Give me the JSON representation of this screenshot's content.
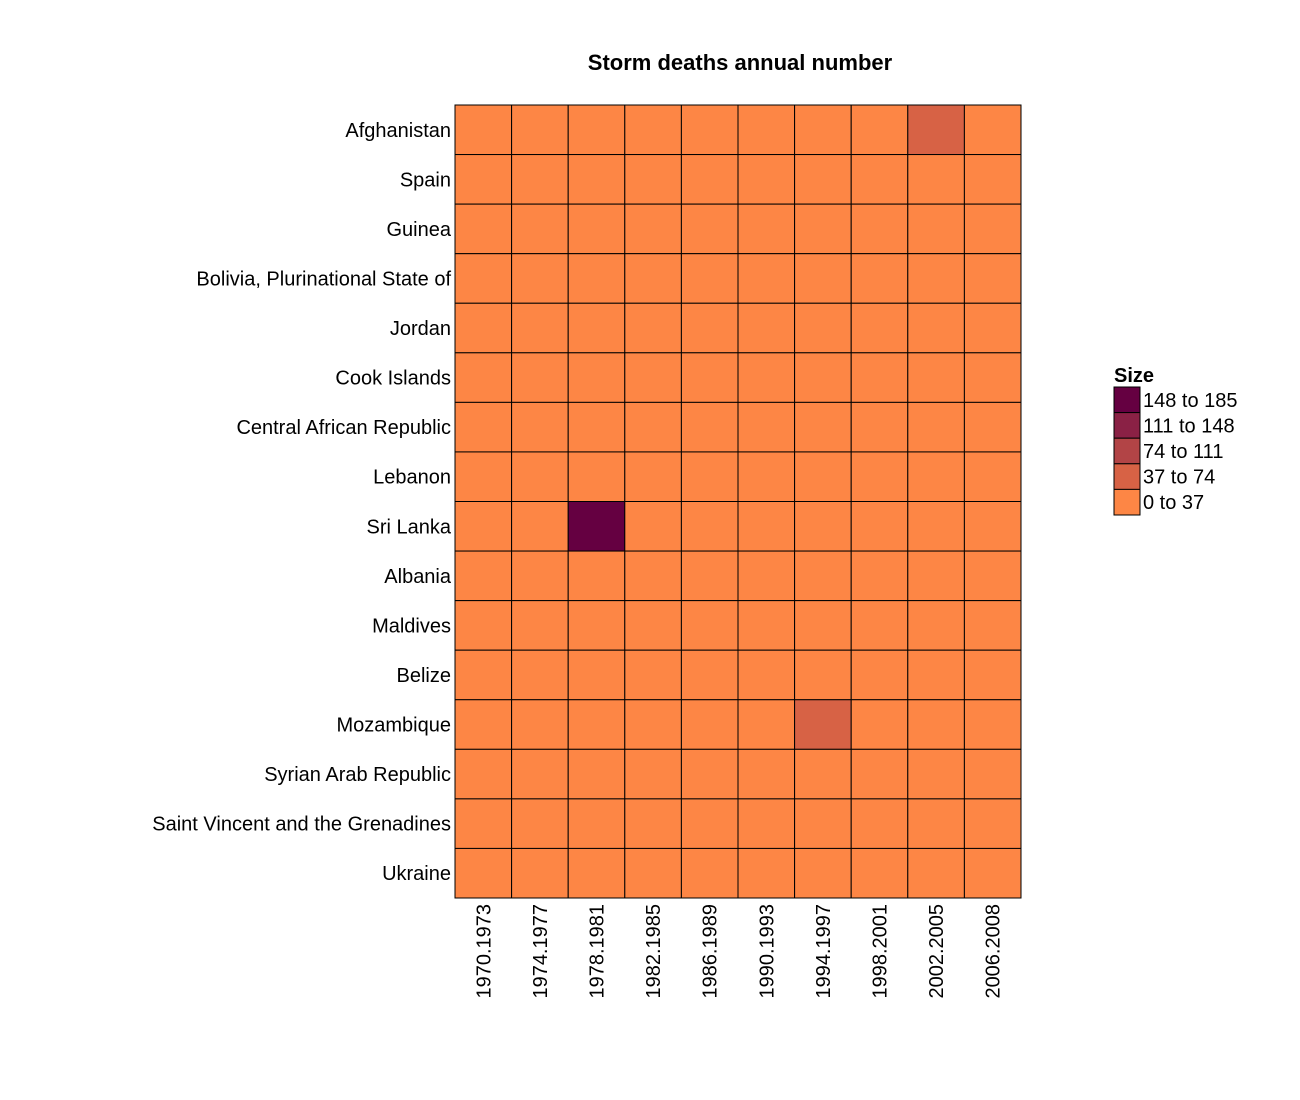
{
  "chart_data": {
    "type": "heatmap",
    "title": "Storm deaths annual number",
    "xlabel": "",
    "ylabel": "",
    "rows": [
      "Afghanistan",
      "Spain",
      "Guinea",
      "Bolivia, Plurinational State of",
      "Jordan",
      "Cook Islands",
      "Central African Republic",
      "Lebanon",
      "Sri Lanka",
      "Albania",
      "Maldives",
      "Belize",
      "Mozambique",
      "Syrian Arab Republic",
      "Saint Vincent and the Grenadines",
      "Ukraine"
    ],
    "columns": [
      "1970.1973",
      "1974.1977",
      "1978.1981",
      "1982.1985",
      "1986.1989",
      "1990.1993",
      "1994.1997",
      "1998.2001",
      "2002.2005",
      "2006.2008"
    ],
    "bin_index": [
      [
        0,
        0,
        0,
        0,
        0,
        0,
        0,
        0,
        1,
        0
      ],
      [
        0,
        0,
        0,
        0,
        0,
        0,
        0,
        0,
        0,
        0
      ],
      [
        0,
        0,
        0,
        0,
        0,
        0,
        0,
        0,
        0,
        0
      ],
      [
        0,
        0,
        0,
        0,
        0,
        0,
        0,
        0,
        0,
        0
      ],
      [
        0,
        0,
        0,
        0,
        0,
        0,
        0,
        0,
        0,
        0
      ],
      [
        0,
        0,
        0,
        0,
        0,
        0,
        0,
        0,
        0,
        0
      ],
      [
        0,
        0,
        0,
        0,
        0,
        0,
        0,
        0,
        0,
        0
      ],
      [
        0,
        0,
        0,
        0,
        0,
        0,
        0,
        0,
        0,
        0
      ],
      [
        0,
        0,
        4,
        0,
        0,
        0,
        0,
        0,
        0,
        0
      ],
      [
        0,
        0,
        0,
        0,
        0,
        0,
        0,
        0,
        0,
        0
      ],
      [
        0,
        0,
        0,
        0,
        0,
        0,
        0,
        0,
        0,
        0
      ],
      [
        0,
        0,
        0,
        0,
        0,
        0,
        0,
        0,
        0,
        0
      ],
      [
        0,
        0,
        0,
        0,
        0,
        0,
        1,
        0,
        0,
        0
      ],
      [
        0,
        0,
        0,
        0,
        0,
        0,
        0,
        0,
        0,
        0
      ],
      [
        0,
        0,
        0,
        0,
        0,
        0,
        0,
        0,
        0,
        0
      ],
      [
        0,
        0,
        0,
        0,
        0,
        0,
        0,
        0,
        0,
        0
      ]
    ],
    "legend": {
      "title": "Size",
      "position": "right",
      "bins": [
        {
          "label": "0 to 37",
          "range": [
            0,
            37
          ],
          "color": "#fd8645"
        },
        {
          "label": "37 to 74",
          "range": [
            37,
            74
          ],
          "color": "#d76245"
        },
        {
          "label": "74 to 111",
          "range": [
            74,
            111
          ],
          "color": "#b24446"
        },
        {
          "label": "111 to 148",
          "range": [
            111,
            148
          ],
          "color": "#8a2145"
        },
        {
          "label": "148 to 185",
          "range": [
            148,
            185
          ],
          "color": "#650041"
        }
      ]
    },
    "grid": false,
    "cell_border_color": "#000000"
  }
}
